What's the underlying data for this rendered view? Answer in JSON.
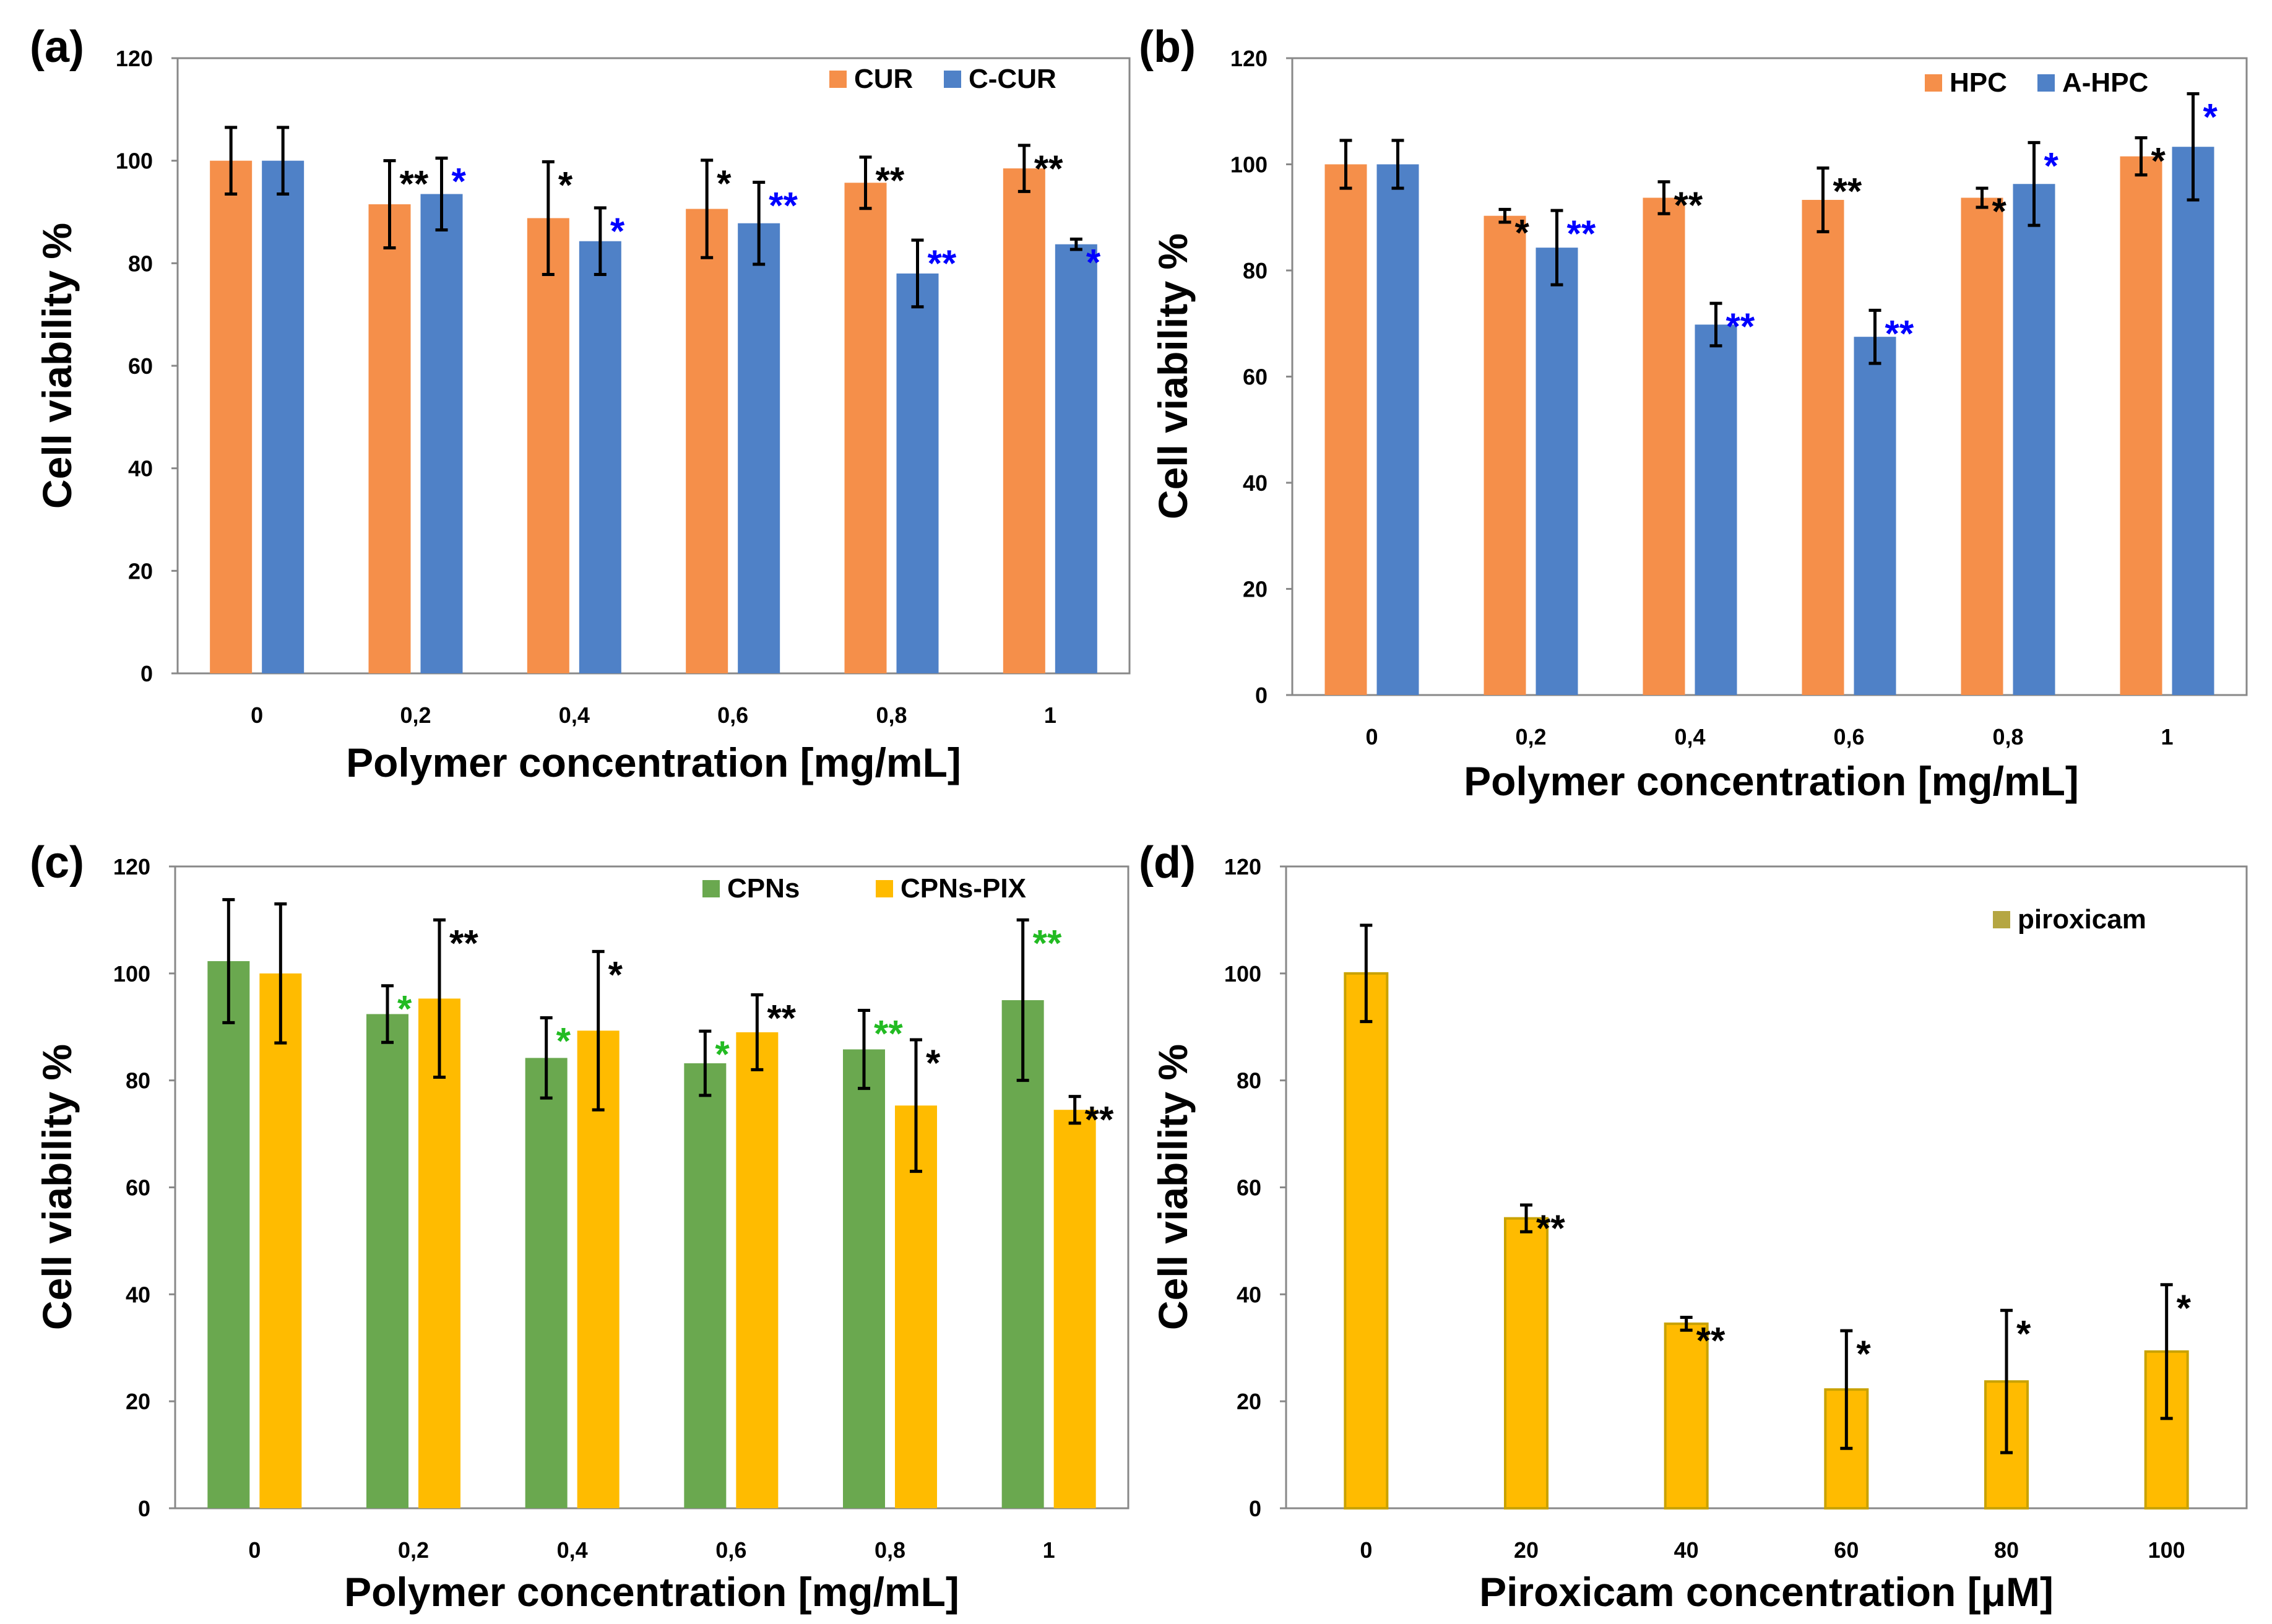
{
  "figure": {
    "panels": [
      "(a)",
      "(b)",
      "(c)",
      "(d)"
    ]
  },
  "chart_data": [
    {
      "type": "bar",
      "panel": "(a)",
      "categories": [
        "0",
        "0,2",
        "0,4",
        "0,6",
        "0,8",
        "1"
      ],
      "xlabel": "Polymer concentration [mg/mL]",
      "ylabel": "Cell viability %",
      "ylim": [
        0,
        120
      ],
      "yticks": [
        0,
        20,
        40,
        60,
        80,
        100,
        120
      ],
      "grid": false,
      "legend_position": "top-right",
      "series": [
        {
          "name": "CUR",
          "color": "#f58f4a",
          "values": [
            100,
            91.5,
            88.8,
            90.6,
            95.7,
            98.5
          ],
          "errors": [
            6.5,
            8.5,
            11,
            9.5,
            5,
            4.5
          ],
          "sig": [
            "",
            "**",
            "*",
            "*",
            "**",
            "**"
          ],
          "sig_color": "#000000"
        },
        {
          "name": "C-CUR",
          "color": "#4f81c7",
          "values": [
            100,
            93.5,
            84.3,
            87.8,
            78,
            83.7
          ],
          "errors": [
            6.5,
            7,
            6.5,
            8,
            6.5,
            1
          ],
          "sig": [
            "",
            "*",
            "*",
            "**",
            "**",
            "*"
          ],
          "sig_color": "#0000ff"
        }
      ]
    },
    {
      "type": "bar",
      "panel": "(b)",
      "categories": [
        "0",
        "0,2",
        "0,4",
        "0,6",
        "0,8",
        "1"
      ],
      "xlabel": "Polymer concentration [mg/mL]",
      "ylabel": "Cell viability %",
      "ylim": [
        0,
        120
      ],
      "yticks": [
        0,
        20,
        40,
        60,
        80,
        100,
        120
      ],
      "grid": false,
      "legend_position": "top-right",
      "series": [
        {
          "name": "HPC",
          "color": "#f58f4a",
          "values": [
            100,
            90.3,
            93.7,
            93.3,
            93.7,
            101.5
          ],
          "errors": [
            4.5,
            1.2,
            3,
            6,
            1.8,
            3.5
          ],
          "sig": [
            "",
            "*",
            "**",
            "**",
            "*",
            "*"
          ],
          "sig_color": "#000000"
        },
        {
          "name": "A-HPC",
          "color": "#4f81c7",
          "values": [
            100,
            84.3,
            69.8,
            67.5,
            96.3,
            103.3
          ],
          "errors": [
            4.5,
            7,
            4,
            5,
            7.8,
            10
          ],
          "sig": [
            "",
            "**",
            "**",
            "**",
            "*",
            "*"
          ],
          "sig_color": "#0000ff"
        }
      ]
    },
    {
      "type": "bar",
      "panel": "(c)",
      "categories": [
        "0",
        "0,2",
        "0,4",
        "0,6",
        "0,8",
        "1"
      ],
      "xlabel": "Polymer concentration [mg/mL]",
      "ylabel": "Cell viability %",
      "ylim": [
        0,
        120
      ],
      "yticks": [
        0,
        20,
        40,
        60,
        80,
        100,
        120
      ],
      "grid": false,
      "legend_position": "top-right",
      "series": [
        {
          "name": "CPNs",
          "color": "#6aa84f",
          "values": [
            102.3,
            92.4,
            84.2,
            83.2,
            85.8,
            95
          ],
          "errors": [
            11.5,
            5.3,
            7.5,
            6,
            7.3,
            15
          ],
          "sig": [
            "",
            "*",
            "*",
            "*",
            "**",
            "**"
          ],
          "sig_color": "#22bb22"
        },
        {
          "name": "CPNs-PIX",
          "color": "#ffbb00",
          "values": [
            100,
            95.3,
            89.3,
            89,
            75.3,
            74.5
          ],
          "errors": [
            13,
            14.7,
            14.8,
            7,
            12.3,
            2.5
          ],
          "sig": [
            "",
            "**",
            "*",
            "**",
            "*",
            "**"
          ],
          "sig_color": "#000000"
        }
      ]
    },
    {
      "type": "bar",
      "panel": "(d)",
      "categories": [
        "0",
        "20",
        "40",
        "60",
        "80",
        "100"
      ],
      "xlabel": "Piroxicam concentration [μM]",
      "ylabel": "Cell viability %",
      "ylim": [
        0,
        120
      ],
      "yticks": [
        0,
        20,
        40,
        60,
        80,
        100,
        120
      ],
      "grid": false,
      "legend_position": "top-right",
      "series": [
        {
          "name": "piroxicam",
          "color": "#ffbb00",
          "legend_color": "#b5a642",
          "values": [
            100,
            54.2,
            34.5,
            22.2,
            23.7,
            29.3
          ],
          "errors": [
            9,
            2.5,
            1.2,
            11,
            13.3,
            12.5
          ],
          "sig": [
            "",
            "**",
            "**",
            "*",
            "*",
            "*"
          ],
          "sig_color": "#000000"
        }
      ]
    }
  ]
}
